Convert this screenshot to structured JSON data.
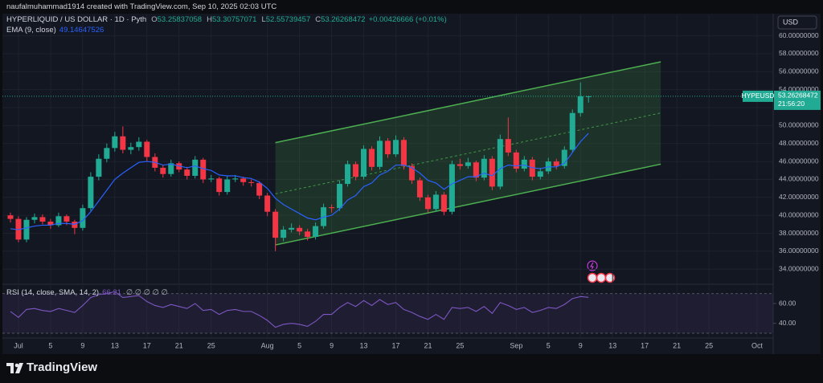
{
  "header": {
    "credit": "naufalmuhammad1914 created with TradingView.com, Sep 10, 2025 02:03 UTC"
  },
  "logo": "TradingView",
  "chart_data": [
    {
      "type": "candlestick",
      "symbol": "HYPERLIQUID / US DOLLAR · 1D · Pyth",
      "ohlc_labels": [
        "O",
        "H",
        "L",
        "C"
      ],
      "change": "+0.00426666 (+0.01%)",
      "currency": "USD",
      "up_color": "#22ab94",
      "down_color": "#f23645",
      "grid": true,
      "x": [
        "2025-06-30",
        "2025-07-01",
        "2025-07-02",
        "2025-07-03",
        "2025-07-04",
        "2025-07-05",
        "2025-07-06",
        "2025-07-07",
        "2025-07-08",
        "2025-07-09",
        "2025-07-10",
        "2025-07-11",
        "2025-07-12",
        "2025-07-13",
        "2025-07-14",
        "2025-07-15",
        "2025-07-16",
        "2025-07-17",
        "2025-07-18",
        "2025-07-19",
        "2025-07-20",
        "2025-07-21",
        "2025-07-22",
        "2025-07-23",
        "2025-07-24",
        "2025-07-25",
        "2025-07-26",
        "2025-07-27",
        "2025-07-28",
        "2025-07-29",
        "2025-07-30",
        "2025-07-31",
        "2025-08-01",
        "2025-08-02",
        "2025-08-03",
        "2025-08-04",
        "2025-08-05",
        "2025-08-06",
        "2025-08-07",
        "2025-08-08",
        "2025-08-09",
        "2025-08-10",
        "2025-08-11",
        "2025-08-12",
        "2025-08-13",
        "2025-08-14",
        "2025-08-15",
        "2025-08-16",
        "2025-08-17",
        "2025-08-18",
        "2025-08-19",
        "2025-08-20",
        "2025-08-21",
        "2025-08-22",
        "2025-08-23",
        "2025-08-24",
        "2025-08-25",
        "2025-08-26",
        "2025-08-27",
        "2025-08-28",
        "2025-08-29",
        "2025-08-30",
        "2025-08-31",
        "2025-09-01",
        "2025-09-02",
        "2025-09-03",
        "2025-09-04",
        "2025-09-05",
        "2025-09-06",
        "2025-09-07",
        "2025-09-08",
        "2025-09-09",
        "2025-09-10"
      ],
      "candles": [
        [
          40.0,
          40.3,
          39.2,
          39.6
        ],
        [
          39.6,
          39.9,
          37.0,
          37.3
        ],
        [
          37.3,
          39.8,
          37.0,
          39.5
        ],
        [
          39.5,
          40.2,
          39.1,
          39.8
        ],
        [
          39.8,
          40.1,
          39.0,
          39.3
        ],
        [
          39.3,
          39.6,
          38.5,
          38.9
        ],
        [
          38.9,
          40.3,
          38.7,
          39.9
        ],
        [
          39.9,
          40.1,
          38.9,
          39.3
        ],
        [
          39.3,
          39.5,
          37.9,
          38.6
        ],
        [
          38.6,
          41.2,
          38.3,
          40.8
        ],
        [
          40.8,
          44.8,
          40.5,
          44.3
        ],
        [
          44.3,
          46.8,
          43.9,
          46.3
        ],
        [
          46.3,
          48.0,
          45.9,
          47.5
        ],
        [
          47.5,
          49.3,
          47.1,
          48.8
        ],
        [
          48.8,
          49.9,
          46.9,
          47.3
        ],
        [
          47.3,
          48.1,
          46.8,
          47.6
        ],
        [
          47.6,
          48.7,
          47.2,
          48.2
        ],
        [
          48.2,
          48.4,
          46.0,
          46.5
        ],
        [
          46.5,
          46.9,
          44.9,
          45.3
        ],
        [
          45.3,
          45.6,
          44.2,
          44.6
        ],
        [
          44.6,
          46.2,
          44.3,
          45.8
        ],
        [
          45.8,
          46.0,
          44.8,
          45.1
        ],
        [
          45.1,
          45.4,
          44.0,
          44.4
        ],
        [
          44.4,
          46.6,
          44.1,
          46.2
        ],
        [
          46.2,
          46.4,
          43.6,
          44.0
        ],
        [
          44.0,
          44.5,
          43.7,
          44.1
        ],
        [
          44.1,
          44.3,
          42.2,
          42.6
        ],
        [
          42.6,
          44.4,
          42.3,
          44.0
        ],
        [
          44.0,
          44.5,
          43.7,
          44.1
        ],
        [
          44.1,
          44.3,
          43.3,
          43.7
        ],
        [
          43.7,
          44.0,
          43.2,
          43.6
        ],
        [
          43.6,
          43.8,
          41.8,
          42.2
        ],
        [
          42.2,
          42.5,
          39.9,
          40.4
        ],
        [
          40.4,
          40.7,
          36.0,
          37.5
        ],
        [
          37.5,
          38.8,
          37.1,
          38.4
        ],
        [
          38.4,
          39.1,
          38.1,
          38.6
        ],
        [
          38.6,
          38.9,
          37.8,
          38.2
        ],
        [
          38.2,
          38.5,
          37.2,
          37.6
        ],
        [
          37.6,
          39.2,
          37.3,
          38.8
        ],
        [
          38.8,
          41.3,
          38.5,
          40.9
        ],
        [
          40.9,
          41.2,
          40.3,
          40.8
        ],
        [
          40.8,
          43.9,
          40.5,
          43.5
        ],
        [
          43.5,
          46.1,
          43.2,
          45.7
        ],
        [
          45.7,
          46.0,
          43.9,
          44.3
        ],
        [
          44.3,
          47.8,
          44.0,
          47.4
        ],
        [
          47.4,
          47.7,
          45.0,
          45.4
        ],
        [
          45.4,
          48.8,
          45.1,
          48.3
        ],
        [
          48.3,
          48.6,
          46.4,
          46.8
        ],
        [
          46.8,
          48.9,
          46.5,
          48.4
        ],
        [
          48.4,
          48.7,
          45.1,
          45.5
        ],
        [
          45.5,
          45.8,
          43.5,
          43.9
        ],
        [
          43.9,
          44.2,
          41.6,
          42.0
        ],
        [
          42.0,
          42.3,
          40.3,
          40.7
        ],
        [
          40.7,
          42.7,
          40.4,
          42.3
        ],
        [
          42.3,
          42.6,
          40.0,
          40.4
        ],
        [
          40.4,
          46.1,
          40.1,
          45.7
        ],
        [
          45.7,
          46.3,
          45.1,
          45.5
        ],
        [
          45.5,
          46.4,
          45.2,
          45.9
        ],
        [
          45.9,
          46.1,
          43.8,
          44.2
        ],
        [
          44.2,
          46.7,
          43.9,
          46.3
        ],
        [
          46.3,
          46.6,
          42.8,
          43.2
        ],
        [
          43.2,
          49.0,
          42.9,
          48.5
        ],
        [
          48.5,
          50.9,
          46.6,
          47.0
        ],
        [
          47.0,
          47.3,
          44.8,
          45.2
        ],
        [
          45.2,
          46.6,
          44.9,
          46.2
        ],
        [
          46.2,
          46.5,
          43.9,
          44.3
        ],
        [
          44.3,
          45.3,
          44.0,
          44.9
        ],
        [
          44.9,
          46.4,
          44.6,
          46.0
        ],
        [
          46.0,
          46.3,
          45.1,
          45.5
        ],
        [
          45.5,
          47.7,
          45.2,
          47.3
        ],
        [
          47.3,
          51.8,
          47.0,
          51.4
        ],
        [
          51.4,
          54.8,
          51.0,
          53.258
        ],
        [
          53.25837058,
          53.30757071,
          52.55739457,
          53.26268472
        ]
      ],
      "ema": {
        "name": "EMA (9, close)",
        "color": "#2962ff",
        "values": [
          38.5,
          38.4,
          38.6,
          38.8,
          38.9,
          38.9,
          39.1,
          39.1,
          39.0,
          39.4,
          40.4,
          41.6,
          42.8,
          44.0,
          44.7,
          45.3,
          45.9,
          46.0,
          45.9,
          45.6,
          45.7,
          45.5,
          45.3,
          45.5,
          45.2,
          45.0,
          44.5,
          44.4,
          44.4,
          44.2,
          44.1,
          43.7,
          43.0,
          41.9,
          41.2,
          40.7,
          40.2,
          39.7,
          39.5,
          39.8,
          40.0,
          40.7,
          41.7,
          42.2,
          43.2,
          43.6,
          44.5,
          44.9,
          45.6,
          45.6,
          45.3,
          44.7,
          43.9,
          43.6,
          42.9,
          43.5,
          43.9,
          44.3,
          44.3,
          44.7,
          44.4,
          45.2,
          45.6,
          45.5,
          45.6,
          45.3,
          45.2,
          45.4,
          45.4,
          45.8,
          47.0,
          48.2,
          49.14647526
        ]
      },
      "channel": {
        "color": "#4caf50",
        "start": "2025-08-02",
        "end": "2025-09-19",
        "upper": [
          48.1,
          57.1
        ],
        "lower": [
          36.7,
          45.7
        ]
      },
      "price_tag": {
        "symbol": "HYPEUSD",
        "countdown": "21:56:20"
      },
      "xlim": [
        "2025-06-29",
        "2025-10-03"
      ],
      "xticks": [
        {
          "value": "2025-07-01",
          "label": "Jul"
        },
        {
          "value": "2025-07-05",
          "label": "5"
        },
        {
          "value": "2025-07-09",
          "label": "9"
        },
        {
          "value": "2025-07-13",
          "label": "13"
        },
        {
          "value": "2025-07-17",
          "label": "17"
        },
        {
          "value": "2025-07-21",
          "label": "21"
        },
        {
          "value": "2025-07-25",
          "label": "25"
        },
        {
          "value": "2025-08-01",
          "label": "Aug"
        },
        {
          "value": "2025-08-05",
          "label": "5"
        },
        {
          "value": "2025-08-09",
          "label": "9"
        },
        {
          "value": "2025-08-13",
          "label": "13"
        },
        {
          "value": "2025-08-17",
          "label": "17"
        },
        {
          "value": "2025-08-21",
          "label": "21"
        },
        {
          "value": "2025-08-25",
          "label": "25"
        },
        {
          "value": "2025-09-01",
          "label": "Sep"
        },
        {
          "value": "2025-09-05",
          "label": "5"
        },
        {
          "value": "2025-09-09",
          "label": "9"
        },
        {
          "value": "2025-09-13",
          "label": "13"
        },
        {
          "value": "2025-09-17",
          "label": "17"
        },
        {
          "value": "2025-09-21",
          "label": "21"
        },
        {
          "value": "2025-09-25",
          "label": "25"
        },
        {
          "value": "2025-10-01",
          "label": "Oct"
        }
      ],
      "ylim": [
        32.5,
        62.2
      ],
      "yticks": [
        {
          "value": 34,
          "label": "34.00000000"
        },
        {
          "value": 36,
          "label": "36.00000000"
        },
        {
          "value": 38,
          "label": "38.00000000"
        },
        {
          "value": 40,
          "label": "40.00000000"
        },
        {
          "value": 42,
          "label": "42.00000000"
        },
        {
          "value": 44,
          "label": "44.00000000"
        },
        {
          "value": 46,
          "label": "46.00000000"
        },
        {
          "value": 48,
          "label": "48.00000000"
        },
        {
          "value": 50,
          "label": "50.00000000"
        },
        {
          "value": 52,
          "label": "52.00000000"
        },
        {
          "value": 54,
          "label": "54.00000000"
        },
        {
          "value": 56,
          "label": "56.00000000"
        },
        {
          "value": 58,
          "label": "58.00000000"
        },
        {
          "value": 60,
          "label": "60.00000000"
        }
      ]
    },
    {
      "type": "line",
      "name": "RSI (14, close, SMA, 14, 2)",
      "placeholders": "∅ ∅ ∅ ∅ ∅",
      "color": "#7e57c2",
      "values": [
        52,
        46,
        54,
        55,
        53,
        52,
        55,
        53,
        51,
        58,
        66,
        69,
        70,
        72,
        66,
        67,
        68,
        62,
        58,
        56,
        59,
        57,
        55,
        60,
        53,
        54,
        49,
        53,
        54,
        52,
        52,
        48,
        43,
        36,
        39,
        40,
        39,
        37,
        42,
        49,
        49,
        56,
        61,
        57,
        63,
        58,
        64,
        59,
        61,
        54,
        51,
        47,
        44,
        49,
        44,
        56,
        55,
        56,
        52,
        57,
        50,
        61,
        58,
        54,
        56,
        51,
        53,
        56,
        55,
        59,
        65,
        67,
        66.21
      ],
      "bands": [
        30,
        70
      ],
      "ylim": [
        26,
        77
      ],
      "yticks": [
        {
          "value": 40,
          "label": "40.00"
        },
        {
          "value": 60,
          "label": "60.00"
        }
      ]
    }
  ]
}
